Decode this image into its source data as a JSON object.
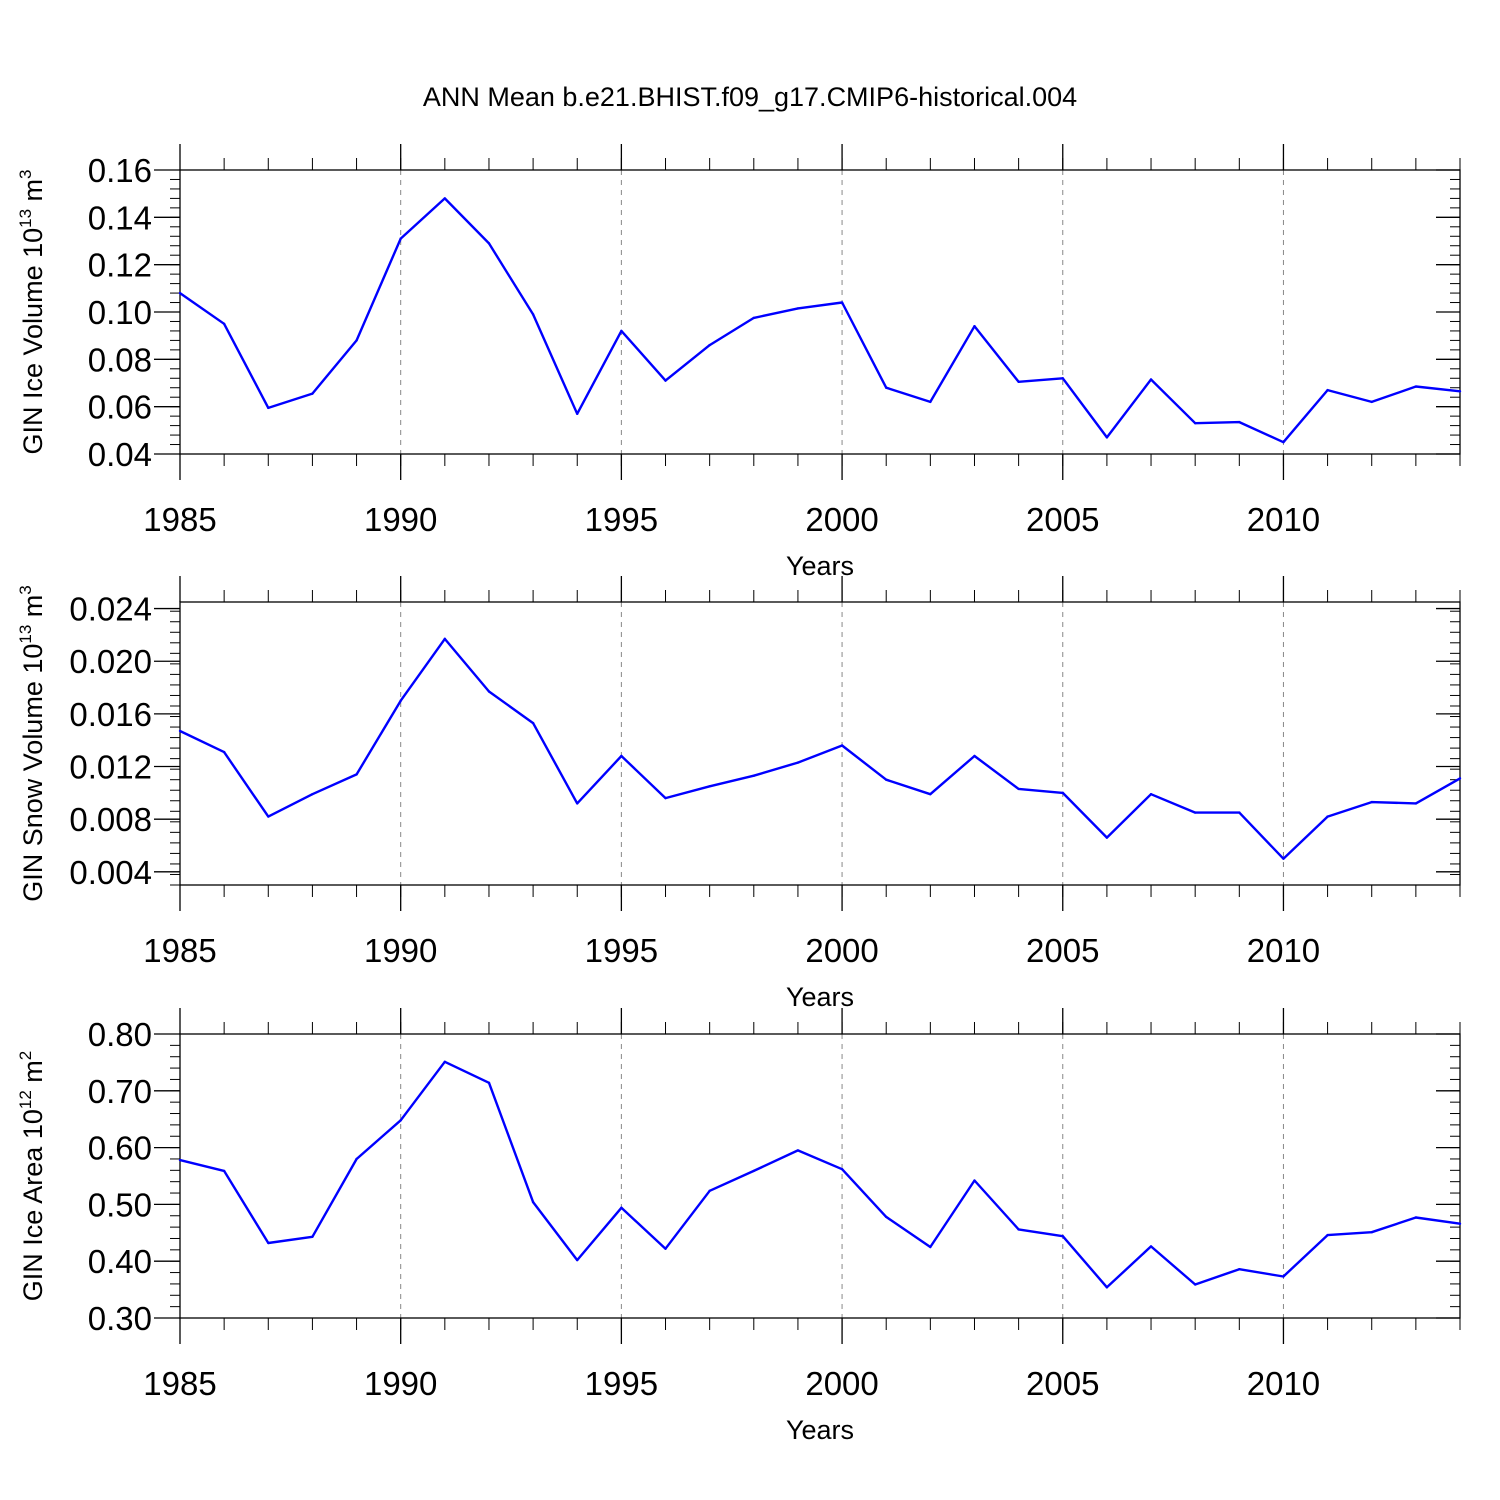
{
  "figure_title": "ANN Mean b.e21.BHIST.f09_g17.CMIP6-historical.004",
  "colors": {
    "line": "#0000ff",
    "axes": "#000000",
    "grid": "#888888"
  },
  "chart_data": [
    {
      "type": "line",
      "title": "ANN Mean b.e21.BHIST.f09_g17.CMIP6-historical.004",
      "xlabel": "Years",
      "ylabel": {
        "text": "GIN Ice Volume 10",
        "exp": "13",
        "unit": " m",
        "unit_exp": "3"
      },
      "xlim": [
        1985,
        2014
      ],
      "ylim": [
        0.04,
        0.16
      ],
      "xticks": [
        "1985",
        "1990",
        "1995",
        "2000",
        "2005",
        "2010"
      ],
      "yticks": [
        "0.04",
        "0.06",
        "0.08",
        "0.10",
        "0.12",
        "0.14",
        "0.16"
      ],
      "grid_x": "dashed at major ticks",
      "x": [
        1985,
        1986,
        1987,
        1988,
        1989,
        1990,
        1991,
        1992,
        1993,
        1994,
        1995,
        1996,
        1997,
        1998,
        1999,
        2000,
        2001,
        2002,
        2003,
        2004,
        2005,
        2006,
        2007,
        2008,
        2009,
        2010,
        2011,
        2012,
        2013,
        2014
      ],
      "values": [
        0.108,
        0.095,
        0.0595,
        0.0655,
        0.088,
        0.131,
        0.148,
        0.129,
        0.099,
        0.057,
        0.092,
        0.071,
        0.086,
        0.0975,
        0.1015,
        0.104,
        0.068,
        0.062,
        0.094,
        0.0705,
        0.072,
        0.047,
        0.0715,
        0.053,
        0.0535,
        0.045,
        0.067,
        0.062,
        0.0685,
        0.0665
      ]
    },
    {
      "type": "line",
      "title": "",
      "xlabel": "Years",
      "ylabel": {
        "text": "GIN Snow Volume 10",
        "exp": "13",
        "unit": " m",
        "unit_exp": "3"
      },
      "xlim": [
        1985,
        2014
      ],
      "ylim": [
        0.003,
        0.0245
      ],
      "xticks": [
        "1985",
        "1990",
        "1995",
        "2000",
        "2005",
        "2010"
      ],
      "yticks": [
        "0.004",
        "0.008",
        "0.012",
        "0.016",
        "0.020",
        "0.024"
      ],
      "grid_x": "dashed at major ticks",
      "x": [
        1985,
        1986,
        1987,
        1988,
        1989,
        1990,
        1991,
        1992,
        1993,
        1994,
        1995,
        1996,
        1997,
        1998,
        1999,
        2000,
        2001,
        2002,
        2003,
        2004,
        2005,
        2006,
        2007,
        2008,
        2009,
        2010,
        2011,
        2012,
        2013,
        2014
      ],
      "values": [
        0.0147,
        0.0131,
        0.0082,
        0.0099,
        0.0114,
        0.017,
        0.0217,
        0.0177,
        0.0153,
        0.0092,
        0.0128,
        0.0096,
        0.0105,
        0.0113,
        0.0123,
        0.0136,
        0.011,
        0.0099,
        0.0128,
        0.0103,
        0.01,
        0.0066,
        0.0099,
        0.0085,
        0.0085,
        0.005,
        0.0082,
        0.0093,
        0.0092,
        0.0111
      ]
    },
    {
      "type": "line",
      "title": "",
      "xlabel": "Years",
      "ylabel": {
        "text": "GIN Ice Area 10",
        "exp": "12",
        "unit": " m",
        "unit_exp": "2"
      },
      "xlim": [
        1985,
        2014
      ],
      "ylim": [
        0.3,
        0.8
      ],
      "xticks": [
        "1985",
        "1990",
        "1995",
        "2000",
        "2005",
        "2010"
      ],
      "yticks": [
        "0.30",
        "0.40",
        "0.50",
        "0.60",
        "0.70",
        "0.80"
      ],
      "grid_x": "dashed at major ticks",
      "x": [
        1985,
        1986,
        1987,
        1988,
        1989,
        1990,
        1991,
        1992,
        1993,
        1994,
        1995,
        1996,
        1997,
        1998,
        1999,
        2000,
        2001,
        2002,
        2003,
        2004,
        2005,
        2006,
        2007,
        2008,
        2009,
        2010,
        2011,
        2012,
        2013,
        2014
      ],
      "values": [
        0.578,
        0.559,
        0.432,
        0.443,
        0.58,
        0.648,
        0.751,
        0.714,
        0.504,
        0.402,
        0.494,
        0.422,
        0.524,
        0.559,
        0.595,
        0.562,
        0.478,
        0.425,
        0.542,
        0.456,
        0.444,
        0.354,
        0.426,
        0.359,
        0.386,
        0.373,
        0.446,
        0.451,
        0.477,
        0.466
      ]
    }
  ]
}
